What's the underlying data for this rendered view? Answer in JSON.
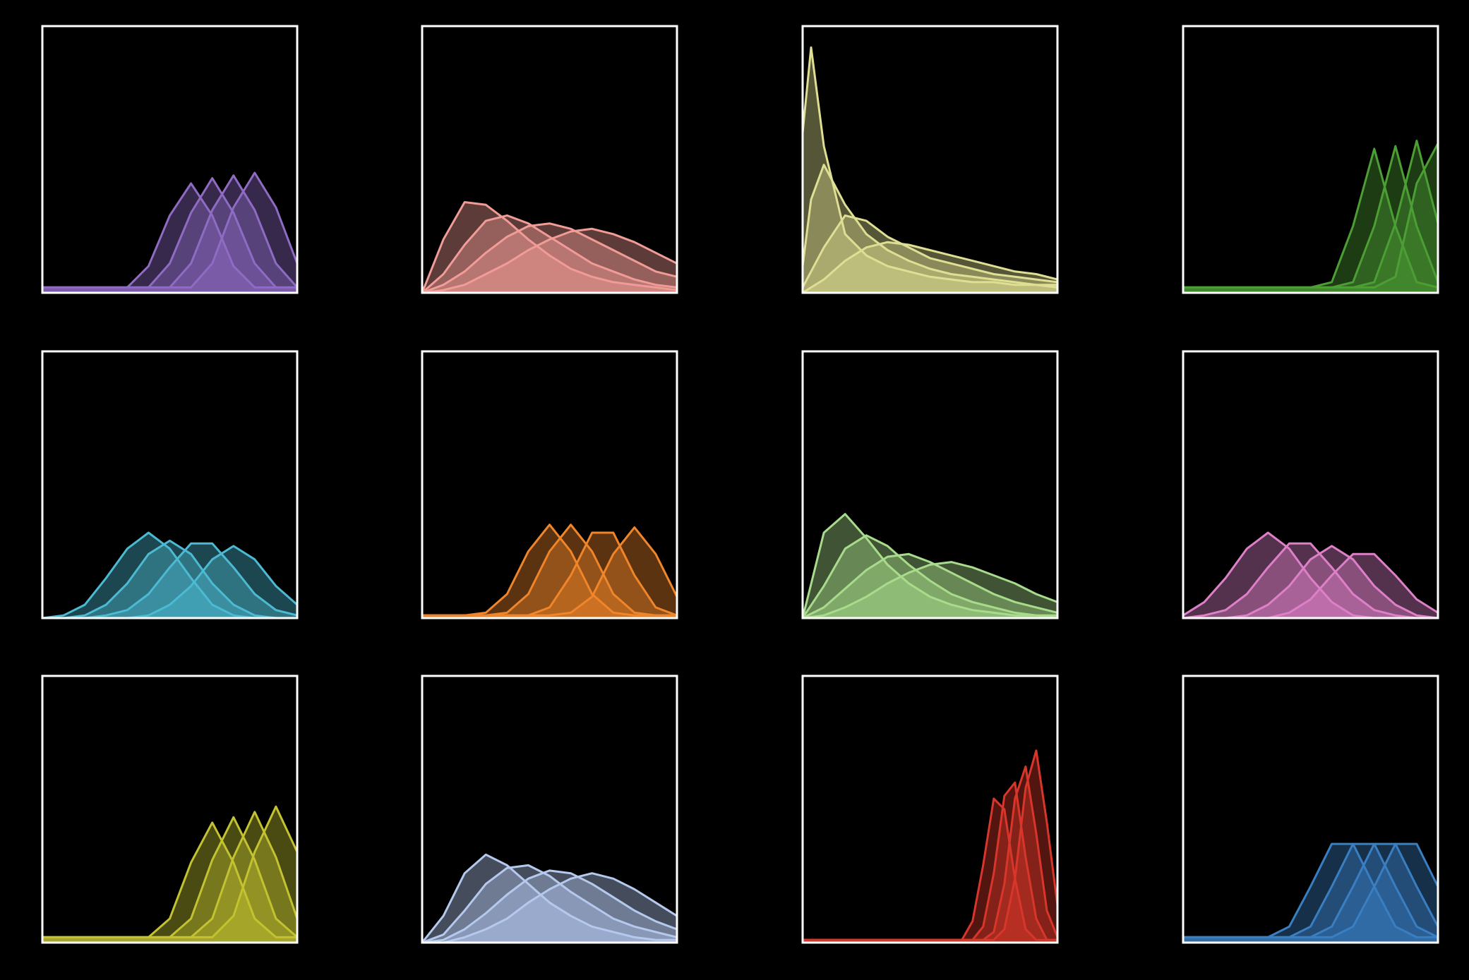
{
  "chart_data": [
    {
      "type": "area",
      "color": "#8f6bc4",
      "xlim": [
        0,
        12
      ],
      "ylim": [
        0,
        1
      ],
      "x": [
        0,
        1,
        2,
        3,
        4,
        5,
        6,
        7,
        8,
        9,
        10,
        11,
        12
      ],
      "series": [
        {
          "values": [
            0.02,
            0.02,
            0.02,
            0.02,
            0.02,
            0.1,
            0.29,
            0.41,
            0.29,
            0.1,
            0.02,
            0.02,
            0.02
          ]
        },
        {
          "values": [
            0.02,
            0.02,
            0.02,
            0.02,
            0.02,
            0.02,
            0.11,
            0.3,
            0.43,
            0.3,
            0.11,
            0.02,
            0.02
          ]
        },
        {
          "values": [
            0.02,
            0.02,
            0.02,
            0.02,
            0.02,
            0.02,
            0.02,
            0.11,
            0.31,
            0.44,
            0.31,
            0.11,
            0.02
          ]
        },
        {
          "values": [
            0.02,
            0.02,
            0.02,
            0.02,
            0.02,
            0.02,
            0.02,
            0.02,
            0.11,
            0.32,
            0.45,
            0.32,
            0.11
          ]
        }
      ]
    },
    {
      "type": "area",
      "color": "#f19c97",
      "xlim": [
        0,
        12
      ],
      "ylim": [
        0,
        1
      ],
      "x": [
        0,
        1,
        2,
        3,
        4,
        5,
        6,
        7,
        8,
        9,
        10,
        11,
        12
      ],
      "series": [
        {
          "values": [
            0,
            0.2,
            0.34,
            0.33,
            0.27,
            0.2,
            0.14,
            0.09,
            0.06,
            0.04,
            0.03,
            0.02,
            0.01
          ]
        },
        {
          "values": [
            0,
            0.07,
            0.18,
            0.27,
            0.29,
            0.26,
            0.21,
            0.16,
            0.11,
            0.08,
            0.05,
            0.03,
            0.02
          ]
        },
        {
          "values": [
            0,
            0.03,
            0.08,
            0.15,
            0.21,
            0.25,
            0.26,
            0.24,
            0.2,
            0.16,
            0.12,
            0.08,
            0.06
          ]
        },
        {
          "values": [
            0,
            0.01,
            0.03,
            0.07,
            0.11,
            0.16,
            0.2,
            0.23,
            0.24,
            0.22,
            0.19,
            0.15,
            0.11
          ]
        }
      ]
    },
    {
      "type": "area",
      "color": "#dfdf94",
      "xlim": [
        0,
        12
      ],
      "ylim": [
        0,
        1
      ],
      "x": [
        0,
        0.4,
        1,
        2,
        3,
        4,
        5,
        6,
        7,
        8,
        9,
        10,
        11,
        12
      ],
      "series": [
        {
          "values": [
            0.6,
            0.92,
            0.55,
            0.22,
            0.14,
            0.1,
            0.08,
            0.06,
            0.05,
            0.04,
            0.04,
            0.03,
            0.03,
            0.02
          ]
        },
        {
          "values": [
            0.1,
            0.35,
            0.48,
            0.33,
            0.22,
            0.16,
            0.12,
            0.09,
            0.07,
            0.06,
            0.05,
            0.04,
            0.03,
            0.03
          ]
        },
        {
          "values": [
            0.02,
            0.08,
            0.17,
            0.29,
            0.27,
            0.21,
            0.17,
            0.13,
            0.11,
            0.09,
            0.07,
            0.06,
            0.05,
            0.04
          ]
        },
        {
          "values": [
            0,
            0.02,
            0.05,
            0.12,
            0.17,
            0.19,
            0.18,
            0.16,
            0.14,
            0.12,
            0.1,
            0.08,
            0.07,
            0.05
          ]
        }
      ]
    },
    {
      "type": "area",
      "color": "#4c9e35",
      "xlim": [
        0,
        12
      ],
      "ylim": [
        0,
        1
      ],
      "x": [
        0,
        1,
        2,
        3,
        4,
        5,
        6,
        7,
        8,
        9,
        10,
        11,
        12
      ],
      "series": [
        {
          "values": [
            0.02,
            0.02,
            0.02,
            0.02,
            0.02,
            0.02,
            0.02,
            0.04,
            0.25,
            0.54,
            0.25,
            0.04,
            0.02
          ]
        },
        {
          "values": [
            0.02,
            0.02,
            0.02,
            0.02,
            0.02,
            0.02,
            0.02,
            0.02,
            0.04,
            0.25,
            0.55,
            0.25,
            0.04
          ]
        },
        {
          "values": [
            0.02,
            0.02,
            0.02,
            0.02,
            0.02,
            0.02,
            0.02,
            0.02,
            0.02,
            0.04,
            0.26,
            0.57,
            0.26
          ]
        },
        {
          "values": [
            0.02,
            0.02,
            0.02,
            0.02,
            0.02,
            0.02,
            0.02,
            0.02,
            0.02,
            0.02,
            0.06,
            0.41,
            0.56
          ]
        }
      ]
    },
    {
      "type": "area",
      "color": "#4cbad2",
      "xlim": [
        0,
        12
      ],
      "ylim": [
        0,
        1
      ],
      "x": [
        0,
        1,
        2,
        3,
        4,
        5,
        6,
        7,
        8,
        9,
        10,
        11,
        12
      ],
      "series": [
        {
          "values": [
            0,
            0.01,
            0.05,
            0.15,
            0.26,
            0.32,
            0.26,
            0.15,
            0.05,
            0.01,
            0,
            0,
            0
          ]
        },
        {
          "values": [
            0,
            0,
            0.01,
            0.05,
            0.13,
            0.24,
            0.29,
            0.24,
            0.13,
            0.05,
            0.01,
            0,
            0
          ]
        },
        {
          "values": [
            0,
            0,
            0,
            0.01,
            0.03,
            0.09,
            0.19,
            0.28,
            0.28,
            0.19,
            0.09,
            0.03,
            0.01
          ]
        },
        {
          "values": [
            0,
            0,
            0,
            0,
            0,
            0.01,
            0.05,
            0.12,
            0.22,
            0.27,
            0.22,
            0.12,
            0.05
          ]
        }
      ]
    },
    {
      "type": "area",
      "color": "#f0852a",
      "xlim": [
        0,
        12
      ],
      "ylim": [
        0,
        1
      ],
      "x": [
        0,
        1,
        2,
        3,
        4,
        5,
        6,
        7,
        8,
        9,
        10,
        11,
        12
      ],
      "series": [
        {
          "values": [
            0.01,
            0.01,
            0.01,
            0.02,
            0.09,
            0.25,
            0.35,
            0.25,
            0.09,
            0.02,
            0.01,
            0.01,
            0.01
          ]
        },
        {
          "values": [
            0.01,
            0.01,
            0.01,
            0.01,
            0.02,
            0.09,
            0.25,
            0.35,
            0.25,
            0.09,
            0.02,
            0.01,
            0.01
          ]
        },
        {
          "values": [
            0.01,
            0.01,
            0.01,
            0.01,
            0.01,
            0.01,
            0.04,
            0.16,
            0.32,
            0.32,
            0.16,
            0.04,
            0.01
          ]
        },
        {
          "values": [
            0.01,
            0.01,
            0.01,
            0.01,
            0.01,
            0.01,
            0.01,
            0.02,
            0.08,
            0.24,
            0.34,
            0.24,
            0.08
          ]
        }
      ]
    },
    {
      "type": "area",
      "color": "#a8dc8c",
      "xlim": [
        0,
        12
      ],
      "ylim": [
        0,
        1
      ],
      "x": [
        0,
        1,
        2,
        3,
        4,
        5,
        6,
        7,
        8,
        9,
        10,
        11,
        12
      ],
      "series": [
        {
          "values": [
            0,
            0.32,
            0.39,
            0.3,
            0.2,
            0.13,
            0.08,
            0.05,
            0.03,
            0.02,
            0.01,
            0.01,
            0
          ]
        },
        {
          "values": [
            0,
            0.12,
            0.26,
            0.31,
            0.27,
            0.2,
            0.14,
            0.09,
            0.06,
            0.04,
            0.02,
            0.01,
            0.01
          ]
        },
        {
          "values": [
            0,
            0.04,
            0.11,
            0.18,
            0.23,
            0.24,
            0.21,
            0.17,
            0.13,
            0.09,
            0.06,
            0.04,
            0.02
          ]
        },
        {
          "values": [
            0,
            0.01,
            0.04,
            0.08,
            0.13,
            0.17,
            0.2,
            0.21,
            0.19,
            0.16,
            0.13,
            0.09,
            0.06
          ]
        }
      ]
    },
    {
      "type": "area",
      "color": "#de80c8",
      "xlim": [
        0,
        12
      ],
      "ylim": [
        0,
        1
      ],
      "x": [
        0,
        1,
        2,
        3,
        4,
        5,
        6,
        7,
        8,
        9,
        10,
        11,
        12
      ],
      "series": [
        {
          "values": [
            0.01,
            0.06,
            0.15,
            0.26,
            0.32,
            0.26,
            0.15,
            0.06,
            0.01,
            0,
            0,
            0,
            0
          ]
        },
        {
          "values": [
            0,
            0.01,
            0.03,
            0.09,
            0.19,
            0.28,
            0.28,
            0.19,
            0.09,
            0.03,
            0.01,
            0,
            0
          ]
        },
        {
          "values": [
            0,
            0,
            0,
            0.01,
            0.05,
            0.12,
            0.22,
            0.27,
            0.22,
            0.12,
            0.05,
            0.01,
            0
          ]
        },
        {
          "values": [
            0,
            0,
            0,
            0,
            0,
            0.02,
            0.07,
            0.16,
            0.24,
            0.24,
            0.16,
            0.07,
            0.02
          ]
        }
      ]
    },
    {
      "type": "area",
      "color": "#c3c331",
      "xlim": [
        0,
        12
      ],
      "ylim": [
        0,
        1
      ],
      "x": [
        0,
        1,
        2,
        3,
        4,
        5,
        6,
        7,
        8,
        9,
        10,
        11,
        12
      ],
      "series": [
        {
          "values": [
            0.02,
            0.02,
            0.02,
            0.02,
            0.02,
            0.02,
            0.09,
            0.3,
            0.45,
            0.3,
            0.09,
            0.02,
            0.02
          ]
        },
        {
          "values": [
            0.02,
            0.02,
            0.02,
            0.02,
            0.02,
            0.02,
            0.02,
            0.09,
            0.31,
            0.47,
            0.31,
            0.09,
            0.02
          ]
        },
        {
          "values": [
            0.02,
            0.02,
            0.02,
            0.02,
            0.02,
            0.02,
            0.02,
            0.02,
            0.09,
            0.32,
            0.49,
            0.32,
            0.09
          ]
        },
        {
          "values": [
            0.02,
            0.02,
            0.02,
            0.02,
            0.02,
            0.02,
            0.02,
            0.02,
            0.02,
            0.1,
            0.34,
            0.51,
            0.34
          ]
        }
      ]
    },
    {
      "type": "area",
      "color": "#b5c9ee",
      "xlim": [
        0,
        12
      ],
      "ylim": [
        0,
        1
      ],
      "x": [
        0,
        1,
        2,
        3,
        4,
        5,
        6,
        7,
        8,
        9,
        10,
        11,
        12
      ],
      "series": [
        {
          "values": [
            0,
            0.1,
            0.26,
            0.33,
            0.29,
            0.22,
            0.15,
            0.1,
            0.06,
            0.04,
            0.02,
            0.01,
            0.01
          ]
        },
        {
          "values": [
            0,
            0.03,
            0.12,
            0.22,
            0.28,
            0.29,
            0.25,
            0.19,
            0.14,
            0.09,
            0.06,
            0.04,
            0.02
          ]
        },
        {
          "values": [
            0,
            0.01,
            0.05,
            0.11,
            0.18,
            0.24,
            0.27,
            0.26,
            0.22,
            0.17,
            0.12,
            0.08,
            0.05
          ]
        },
        {
          "values": [
            0,
            0,
            0.02,
            0.05,
            0.09,
            0.15,
            0.2,
            0.24,
            0.26,
            0.24,
            0.2,
            0.15,
            0.1
          ]
        }
      ]
    },
    {
      "type": "area",
      "color": "#d8362b",
      "xlim": [
        0,
        12
      ],
      "ylim": [
        0,
        1
      ],
      "x": [
        0,
        3,
        6,
        7,
        7.5,
        8,
        8.5,
        9,
        9.5,
        10,
        10.5,
        11,
        11.5,
        12
      ],
      "series": [
        {
          "values": [
            0.01,
            0.01,
            0.01,
            0.01,
            0.01,
            0.08,
            0.29,
            0.54,
            0.5,
            0.24,
            0.05,
            0.01,
            0.01,
            0.01
          ]
        },
        {
          "values": [
            0.01,
            0.01,
            0.01,
            0.01,
            0.01,
            0.01,
            0.06,
            0.26,
            0.55,
            0.6,
            0.32,
            0.09,
            0.01,
            0.01
          ]
        },
        {
          "values": [
            0.01,
            0.01,
            0.01,
            0.01,
            0.01,
            0.01,
            0.01,
            0.04,
            0.22,
            0.54,
            0.66,
            0.41,
            0.12,
            0.02
          ]
        },
        {
          "values": [
            0.01,
            0.01,
            0.01,
            0.01,
            0.01,
            0.01,
            0.01,
            0.01,
            0.05,
            0.24,
            0.58,
            0.72,
            0.45,
            0.14
          ]
        }
      ]
    },
    {
      "type": "area",
      "color": "#3a7fc2",
      "xlim": [
        0,
        12
      ],
      "ylim": [
        0,
        1
      ],
      "x": [
        0,
        1,
        2,
        3,
        4,
        5,
        6,
        7,
        8,
        9,
        10,
        11,
        12
      ],
      "series": [
        {
          "values": [
            0.02,
            0.02,
            0.02,
            0.02,
            0.02,
            0.06,
            0.21,
            0.37,
            0.37,
            0.21,
            0.06,
            0.02,
            0.02
          ]
        },
        {
          "values": [
            0.02,
            0.02,
            0.02,
            0.02,
            0.02,
            0.02,
            0.06,
            0.21,
            0.37,
            0.37,
            0.21,
            0.06,
            0.02
          ]
        },
        {
          "values": [
            0.02,
            0.02,
            0.02,
            0.02,
            0.02,
            0.02,
            0.02,
            0.06,
            0.21,
            0.37,
            0.37,
            0.21,
            0.06
          ]
        },
        {
          "values": [
            0.02,
            0.02,
            0.02,
            0.02,
            0.02,
            0.02,
            0.02,
            0.02,
            0.06,
            0.21,
            0.37,
            0.37,
            0.21
          ]
        }
      ]
    }
  ]
}
